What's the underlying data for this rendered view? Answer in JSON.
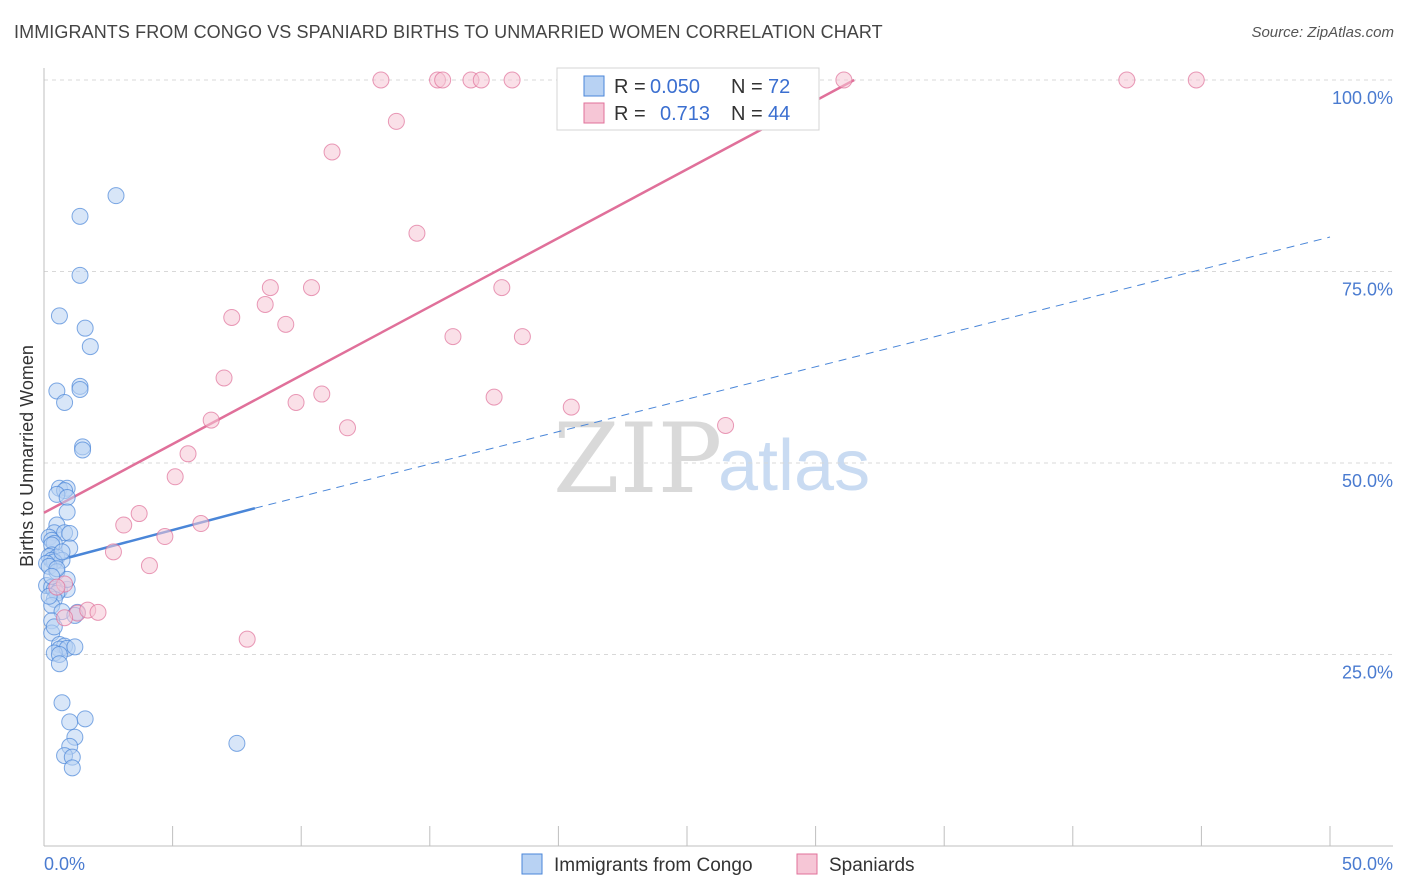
{
  "header": {
    "title": "IMMIGRANTS FROM CONGO VS SPANIARD BIRTHS TO UNMARRIED WOMEN CORRELATION CHART",
    "source": "Source: ZipAtlas.com"
  },
  "watermark": {
    "zip": "ZIP",
    "atlas": "atlas"
  },
  "colors": {
    "blue": "#4a86d8",
    "blue_fill": "#b8d2f3",
    "pink": "#e0709a",
    "pink_fill": "#f6c6d6",
    "grid": "#d8d8d8",
    "tick_text": "#4a7bd0"
  },
  "legend": {
    "rows": [
      {
        "r_label": "R =",
        "r_value": "0.050",
        "n_label": "N =",
        "n_value": "72"
      },
      {
        "r_label": "R =",
        "r_value": "0.713",
        "n_label": "N =",
        "n_value": "44"
      }
    ]
  },
  "bottom_legend": {
    "items": [
      {
        "label": "Immigrants from Congo"
      },
      {
        "label": "Spaniards"
      }
    ]
  },
  "chart_data": {
    "type": "scatter",
    "title": "IMMIGRANTS FROM CONGO VS SPANIARD BIRTHS TO UNMARRIED WOMEN CORRELATION CHART",
    "xlabel": "",
    "ylabel": "Births to Unmarried Women",
    "xlim": [
      0,
      50
    ],
    "ylim": [
      0,
      100
    ],
    "x_tick_labels": {
      "left": "0.0%",
      "right": "50.0%"
    },
    "y_ticks": [
      {
        "value": 25,
        "label": "25.0%"
      },
      {
        "value": 50,
        "label": "50.0%"
      },
      {
        "value": 75,
        "label": "75.0%"
      },
      {
        "value": 100,
        "label": "100.0%"
      }
    ],
    "series": [
      {
        "name": "Immigrants from Congo",
        "color": "#4a86d8",
        "fill": "#b8d2f3",
        "r": 0.05,
        "n": 72,
        "trend_solid": {
          "x": [
            0,
            8.2
          ],
          "y": [
            36.8,
            44.1
          ]
        },
        "trend_dashed": {
          "x": [
            8.2,
            50
          ],
          "y": [
            44.1,
            79.5
          ]
        },
        "points": [
          [
            2.8,
            84.9
          ],
          [
            1.4,
            82.2
          ],
          [
            1.4,
            74.5
          ],
          [
            0.6,
            69.2
          ],
          [
            1.6,
            67.6
          ],
          [
            1.8,
            65.2
          ],
          [
            0.5,
            59.4
          ],
          [
            1.4,
            60.0
          ],
          [
            1.4,
            59.6
          ],
          [
            0.8,
            57.9
          ],
          [
            1.5,
            52.1
          ],
          [
            1.5,
            51.7
          ],
          [
            0.6,
            46.7
          ],
          [
            0.9,
            46.7
          ],
          [
            0.8,
            46.4
          ],
          [
            0.5,
            45.9
          ],
          [
            0.9,
            45.5
          ],
          [
            0.9,
            43.6
          ],
          [
            0.5,
            41.9
          ],
          [
            0.4,
            40.9
          ],
          [
            0.8,
            40.9
          ],
          [
            1.0,
            40.8
          ],
          [
            0.2,
            40.3
          ],
          [
            0.3,
            39.9
          ],
          [
            0.4,
            39.5
          ],
          [
            0.3,
            39.3
          ],
          [
            1.0,
            38.9
          ],
          [
            0.3,
            38.0
          ],
          [
            0.2,
            37.8
          ],
          [
            0.5,
            37.7
          ],
          [
            0.3,
            37.3
          ],
          [
            0.7,
            37.3
          ],
          [
            0.4,
            37.1
          ],
          [
            0.1,
            36.9
          ],
          [
            0.2,
            36.5
          ],
          [
            0.5,
            35.8
          ],
          [
            0.1,
            34.0
          ],
          [
            0.3,
            33.8
          ],
          [
            0.4,
            33.5
          ],
          [
            0.6,
            33.4
          ],
          [
            0.9,
            33.5
          ],
          [
            0.5,
            33.0
          ],
          [
            0.4,
            32.2
          ],
          [
            0.3,
            31.4
          ],
          [
            0.7,
            30.6
          ],
          [
            1.3,
            30.5
          ],
          [
            1.2,
            30.1
          ],
          [
            0.3,
            29.4
          ],
          [
            0.3,
            27.8
          ],
          [
            0.6,
            26.3
          ],
          [
            0.8,
            26.1
          ],
          [
            0.6,
            25.7
          ],
          [
            0.9,
            25.8
          ],
          [
            0.4,
            25.2
          ],
          [
            0.6,
            25.0
          ],
          [
            0.6,
            23.8
          ],
          [
            0.7,
            18.7
          ],
          [
            1.0,
            16.2
          ],
          [
            1.6,
            16.6
          ],
          [
            1.2,
            14.2
          ],
          [
            1.0,
            13.0
          ],
          [
            0.8,
            11.8
          ],
          [
            1.1,
            11.6
          ],
          [
            1.1,
            10.2
          ],
          [
            7.5,
            13.4
          ],
          [
            0.2,
            32.6
          ],
          [
            0.4,
            28.6
          ],
          [
            0.9,
            34.8
          ],
          [
            0.5,
            36.2
          ],
          [
            1.2,
            26.0
          ],
          [
            0.7,
            38.4
          ],
          [
            0.3,
            35.2
          ]
        ]
      },
      {
        "name": "Spaniards",
        "color": "#e0709a",
        "fill": "#f6c6d6",
        "r": 0.713,
        "n": 44,
        "trend": {
          "x": [
            0,
            31.5
          ],
          "y": [
            43.5,
            100
          ]
        },
        "points": [
          [
            13.1,
            100
          ],
          [
            15.3,
            100
          ],
          [
            15.5,
            100
          ],
          [
            16.6,
            100
          ],
          [
            17.0,
            100
          ],
          [
            18.2,
            100
          ],
          [
            23.0,
            100
          ],
          [
            31.1,
            100
          ],
          [
            42.1,
            100
          ],
          [
            44.8,
            100
          ],
          [
            13.7,
            94.6
          ],
          [
            11.2,
            90.6
          ],
          [
            14.5,
            80.0
          ],
          [
            8.8,
            72.9
          ],
          [
            10.4,
            72.9
          ],
          [
            17.8,
            72.9
          ],
          [
            8.6,
            70.7
          ],
          [
            7.3,
            69.0
          ],
          [
            9.4,
            68.1
          ],
          [
            15.9,
            66.5
          ],
          [
            18.6,
            66.5
          ],
          [
            7.0,
            61.1
          ],
          [
            10.8,
            59.0
          ],
          [
            17.5,
            58.6
          ],
          [
            9.8,
            57.9
          ],
          [
            20.5,
            57.3
          ],
          [
            6.5,
            55.6
          ],
          [
            11.8,
            54.6
          ],
          [
            26.5,
            54.9
          ],
          [
            5.6,
            51.2
          ],
          [
            5.1,
            48.2
          ],
          [
            3.7,
            43.4
          ],
          [
            3.1,
            41.9
          ],
          [
            6.1,
            42.1
          ],
          [
            4.7,
            40.4
          ],
          [
            2.7,
            38.4
          ],
          [
            4.1,
            36.6
          ],
          [
            0.8,
            34.2
          ],
          [
            0.5,
            33.8
          ],
          [
            1.3,
            30.4
          ],
          [
            1.7,
            30.8
          ],
          [
            2.1,
            30.5
          ],
          [
            0.8,
            29.8
          ],
          [
            7.9,
            27.0
          ]
        ]
      }
    ]
  }
}
